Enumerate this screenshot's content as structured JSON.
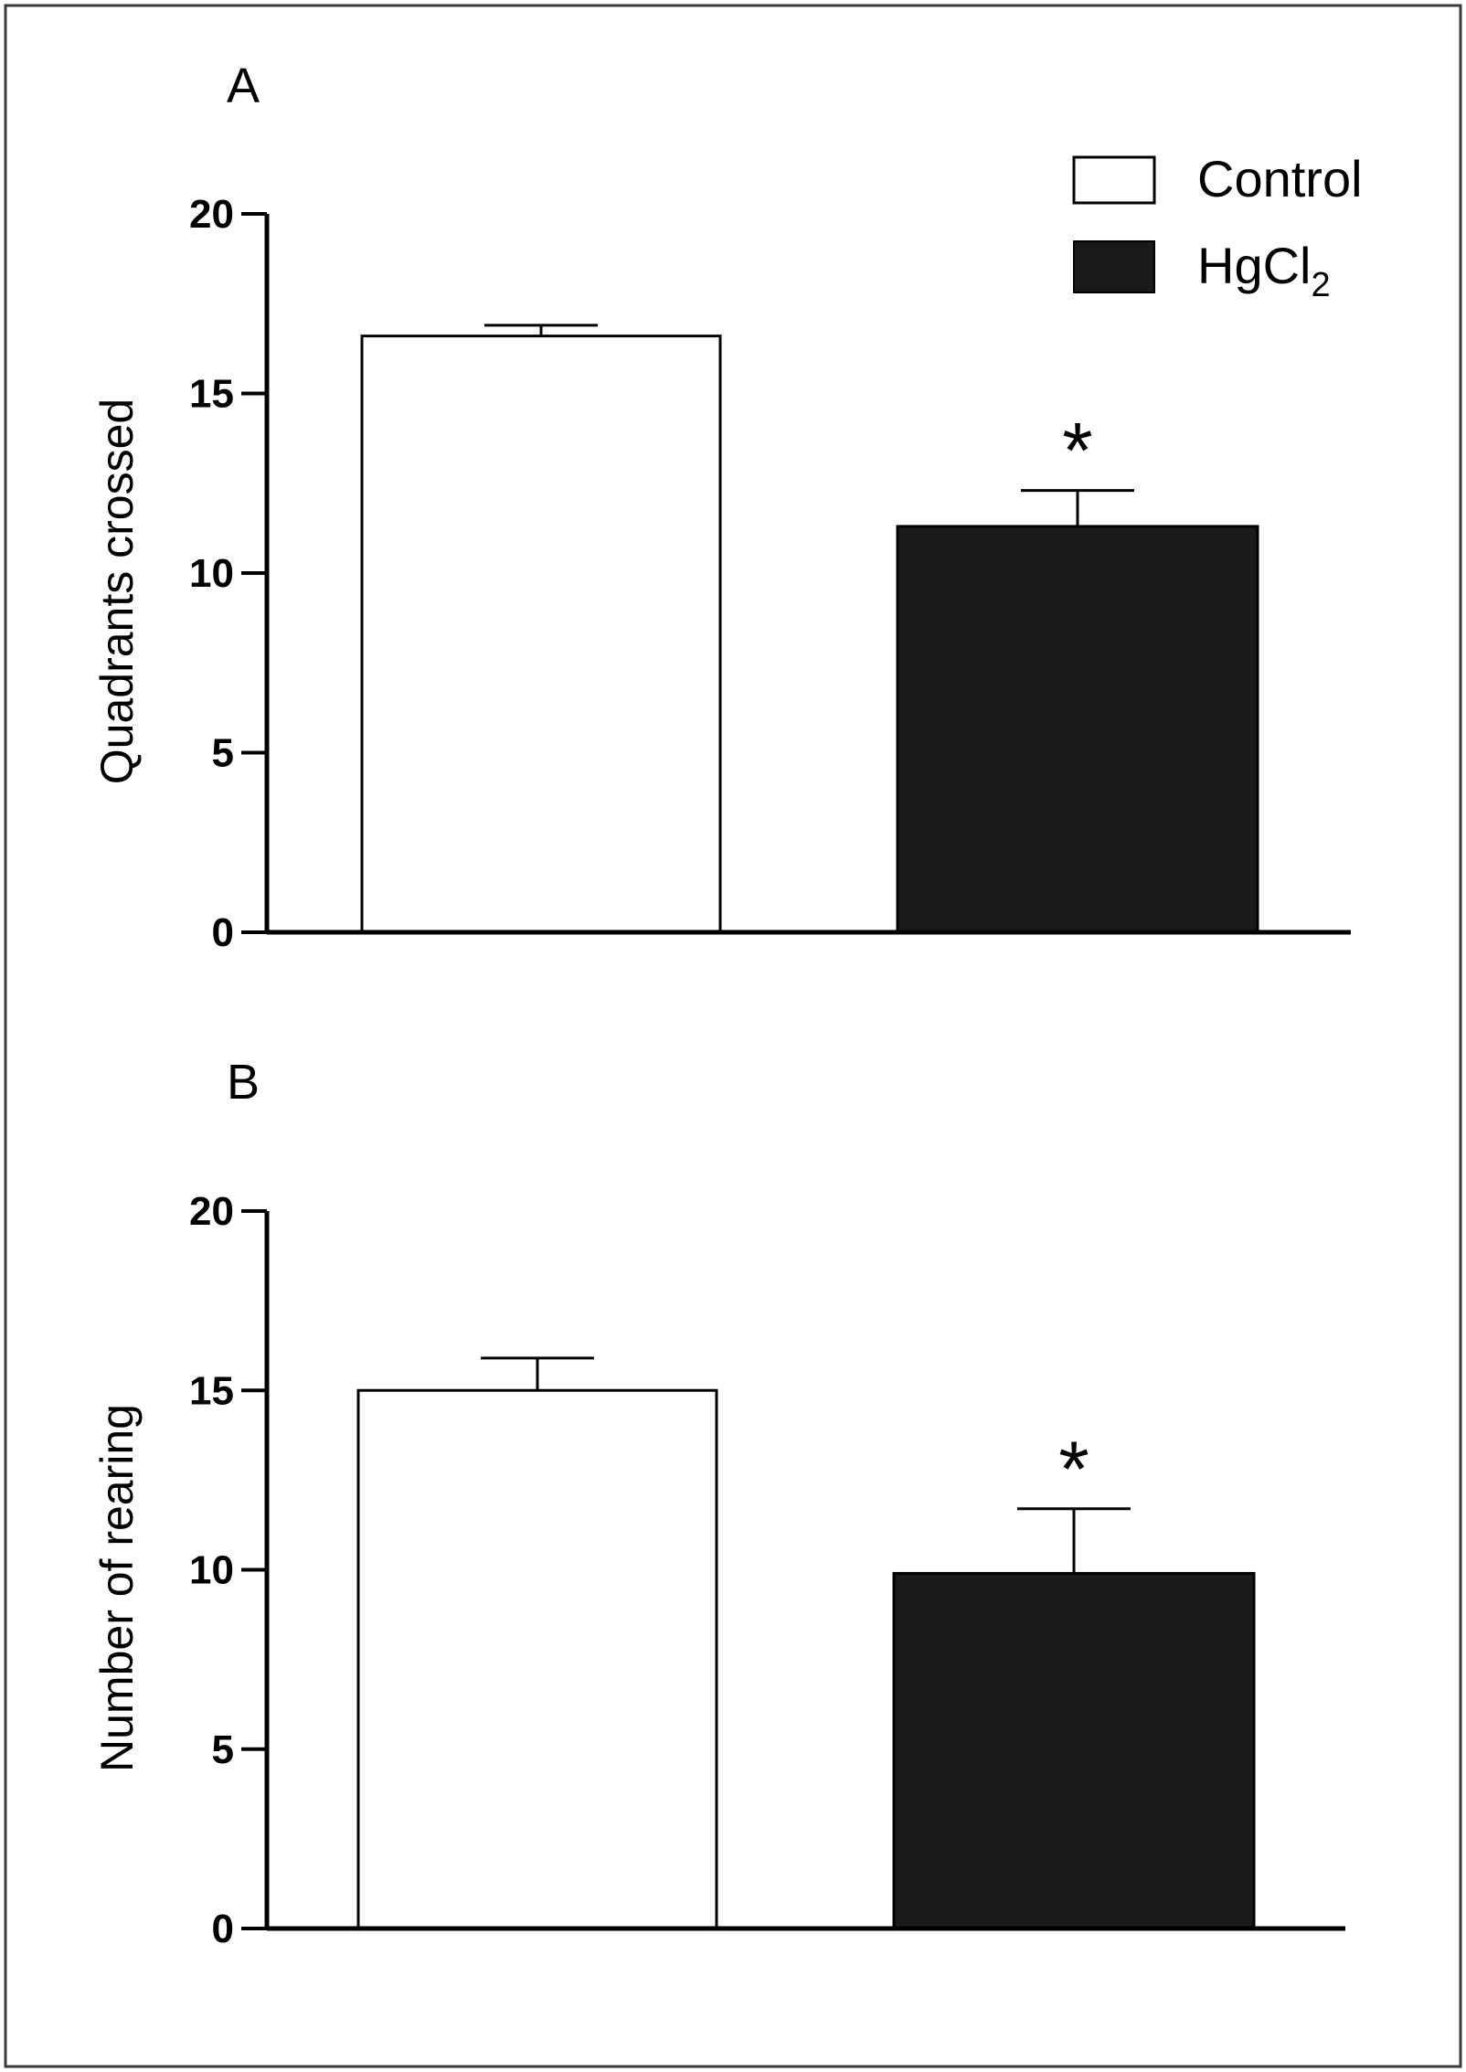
{
  "figure": {
    "legend": {
      "items": [
        {
          "label": "Control",
          "color": "#ffffff"
        },
        {
          "label": "HgCl",
          "subscript": "2",
          "color": "#1a1a1a"
        }
      ]
    }
  },
  "chart_data": [
    {
      "type": "bar",
      "panel_label": "A",
      "ylabel": "Quadrants crossed",
      "xlabel": "",
      "ylim": [
        0,
        20
      ],
      "yticks": [
        "0",
        "5",
        "10",
        "15",
        "20"
      ],
      "categories": [
        "Control",
        "HgCl2"
      ],
      "values": [
        16.6,
        11.3
      ],
      "errors": [
        0.3,
        1.0
      ],
      "colors": [
        "#ffffff",
        "#1a1a1a"
      ],
      "significance": [
        "",
        "*"
      ]
    },
    {
      "type": "bar",
      "panel_label": "B",
      "ylabel": "Number of rearing",
      "xlabel": "",
      "ylim": [
        0,
        20
      ],
      "yticks": [
        "0",
        "5",
        "10",
        "15",
        "20"
      ],
      "categories": [
        "Control",
        "HgCl2"
      ],
      "values": [
        15.0,
        9.9
      ],
      "errors": [
        0.9,
        1.8
      ],
      "colors": [
        "#ffffff",
        "#1a1a1a"
      ],
      "significance": [
        "",
        "*"
      ]
    }
  ]
}
